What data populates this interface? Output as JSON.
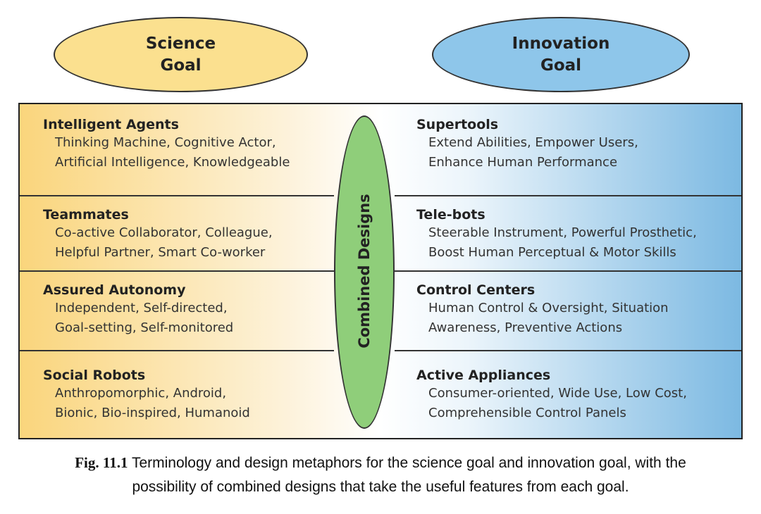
{
  "goals": {
    "science": [
      "Science",
      "Goal"
    ],
    "innovation": [
      "Innovation",
      "Goal"
    ]
  },
  "center_label": "Combined Designs",
  "left_column": [
    {
      "title": "Intelligent Agents",
      "lines": [
        "Thinking Machine, Cognitive Actor,",
        "Artificial Intelligence, Knowledgeable"
      ]
    },
    {
      "title": "Teammates",
      "lines": [
        "Co-active Collaborator, Colleague,",
        "Helpful Partner, Smart Co-worker"
      ]
    },
    {
      "title": "Assured Autonomy",
      "lines": [
        "Independent, Self-directed,",
        "Goal-setting, Self-monitored"
      ]
    },
    {
      "title": "Social Robots",
      "lines": [
        "Anthropomorphic, Android,",
        "Bionic, Bio-inspired, Humanoid"
      ]
    }
  ],
  "right_column": [
    {
      "title": "Supertools",
      "lines": [
        "Extend Abilities, Empower Users,",
        "Enhance Human Performance"
      ]
    },
    {
      "title": "Tele-bots",
      "lines": [
        "Steerable Instrument, Powerful Prosthetic,",
        "Boost Human Perceptual & Motor Skills"
      ]
    },
    {
      "title": "Control Centers",
      "lines": [
        "Human Control & Oversight, Situation",
        "Awareness, Preventive Actions"
      ]
    },
    {
      "title": "Active Appliances",
      "lines": [
        "Consumer-oriented, Wide Use, Low Cost,",
        "Comprehensible Control Panels"
      ]
    }
  ],
  "caption": {
    "label": "Fig. 11.1",
    "line1": " Terminology and design metaphors for the science goal and innovation goal, with the",
    "line2": "possibility of combined designs that take the useful features from each goal."
  },
  "colors": {
    "science_goal": "#fbe08f",
    "innovation_goal": "#8ec6ea",
    "combined": "#8fce7a",
    "left_gradient": "#fad57c",
    "right_gradient": "#7cb9e2"
  }
}
